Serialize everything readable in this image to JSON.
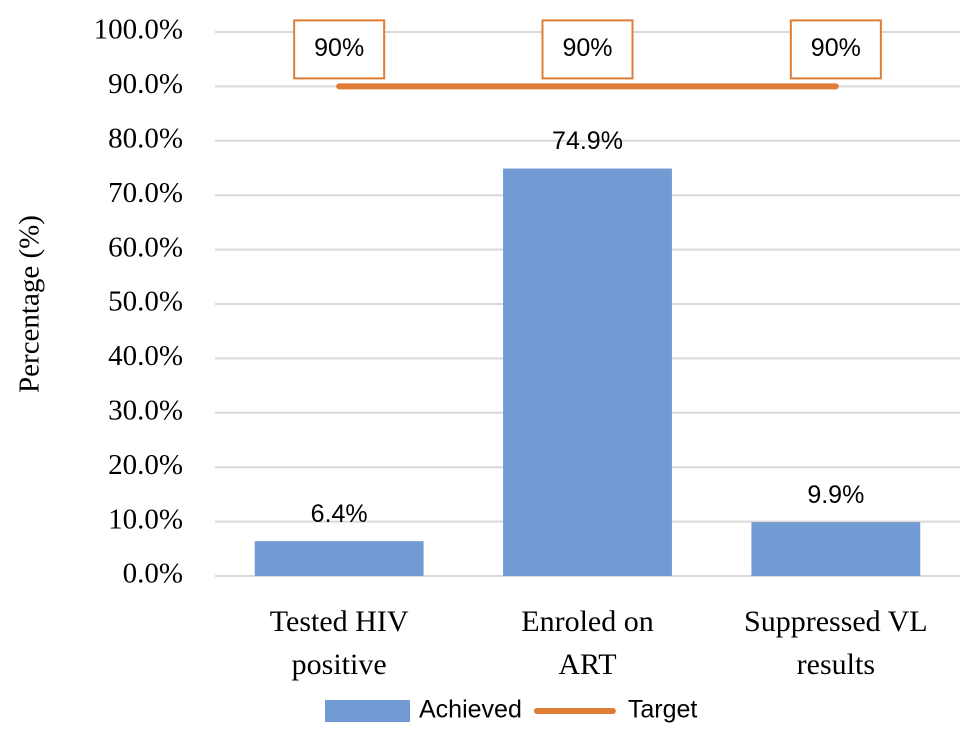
{
  "chart_data": {
    "type": "bar",
    "categories": [
      "Tested HIV\npositive",
      "Enroled on\nART",
      "Suppressed VL\nresults"
    ],
    "ylabel": "Percentage (%)",
    "series": [
      {
        "name": "Achieved",
        "type": "bar",
        "color": "#729bd3",
        "values": [
          6.4,
          74.9,
          9.9
        ],
        "value_labels": [
          "6.4%",
          "74.9%",
          "9.9%"
        ]
      },
      {
        "name": "Target",
        "type": "line",
        "color": "#df7c36",
        "values": [
          90,
          90,
          90
        ],
        "value_labels": [
          "90%",
          "90%",
          "90%"
        ]
      }
    ],
    "ylim": [
      0,
      100
    ],
    "yticks": [
      {
        "value": 0,
        "label": "0.0%"
      },
      {
        "value": 10,
        "label": "10.0%"
      },
      {
        "value": 20,
        "label": "20.0%"
      },
      {
        "value": 30,
        "label": "30.0%"
      },
      {
        "value": 40,
        "label": "40.0%"
      },
      {
        "value": 50,
        "label": "50.0%"
      },
      {
        "value": 60,
        "label": "60.0%"
      },
      {
        "value": 70,
        "label": "70.0%"
      },
      {
        "value": 80,
        "label": "80.0%"
      },
      {
        "value": 90,
        "label": "90.0%"
      },
      {
        "value": 100,
        "label": "100.0%"
      }
    ],
    "grid": true,
    "legend": "bottom"
  }
}
